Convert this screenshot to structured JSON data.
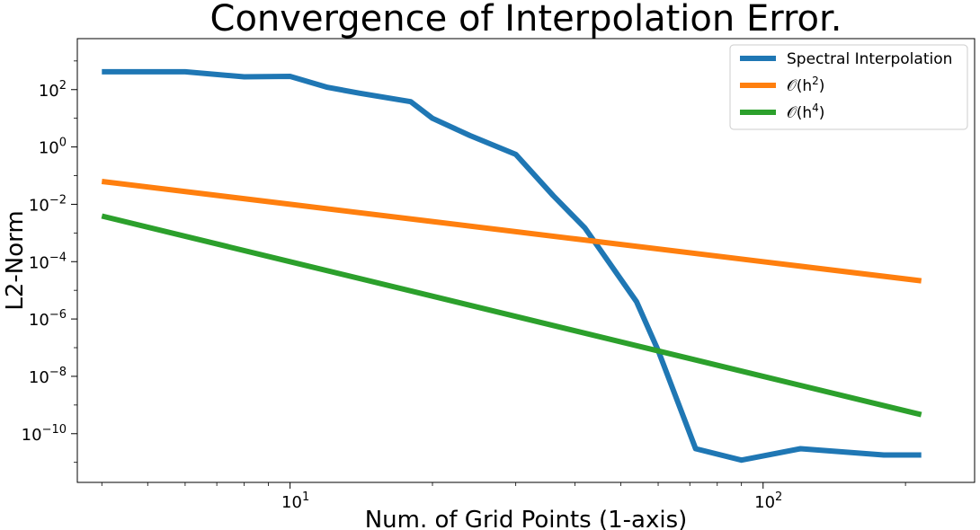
{
  "chart_data": {
    "type": "line",
    "title": "Convergence of Interpolation Error.",
    "xlabel": "Num. of Grid Points (1-axis)",
    "ylabel": "L2-Norm",
    "xscale": "log",
    "yscale": "log",
    "xlim": [
      3.55,
      280
    ],
    "ylim": [
      2e-12,
      6000.0
    ],
    "x_ticks": [
      {
        "value": 10,
        "mantissa": "10",
        "exp": "1"
      },
      {
        "value": 100,
        "mantissa": "10",
        "exp": "2"
      }
    ],
    "y_ticks": [
      {
        "value": 100.0,
        "mantissa": "10",
        "exp": "2"
      },
      {
        "value": 1.0,
        "mantissa": "10",
        "exp": "0"
      },
      {
        "value": 0.01,
        "mantissa": "10",
        "exp": "−2"
      },
      {
        "value": 0.0001,
        "mantissa": "10",
        "exp": "−4"
      },
      {
        "value": 1e-06,
        "mantissa": "10",
        "exp": "−6"
      },
      {
        "value": 1e-08,
        "mantissa": "10",
        "exp": "−8"
      },
      {
        "value": 1e-10,
        "mantissa": "10",
        "exp": "−10"
      }
    ],
    "grid": false,
    "legend_position": "top-right",
    "series": [
      {
        "name": "Spectral Interpolation",
        "color": "#1f77b4",
        "points": [
          [
            4,
            420
          ],
          [
            6,
            420
          ],
          [
            8,
            280
          ],
          [
            10,
            290
          ],
          [
            12,
            120
          ],
          [
            14,
            75
          ],
          [
            18,
            38
          ],
          [
            20,
            10
          ],
          [
            24,
            2.5
          ],
          [
            30,
            0.55
          ],
          [
            36,
            0.02
          ],
          [
            42,
            0.0015
          ],
          [
            54,
            4e-06
          ],
          [
            60,
            8e-08
          ],
          [
            72,
            3e-11
          ],
          [
            90,
            1.2e-11
          ],
          [
            120,
            3e-11
          ],
          [
            180,
            1.8e-11
          ],
          [
            216,
            1.8e-11
          ]
        ]
      },
      {
        "name": "𝒪(h²)",
        "name_main": "𝒪(h",
        "name_sup": "2",
        "name_end": ")",
        "color": "#ff7f0e",
        "points": [
          [
            4,
            0.0625
          ],
          [
            10,
            0.01
          ],
          [
            20,
            0.0025
          ],
          [
            40,
            0.000625
          ],
          [
            100,
            0.0001
          ],
          [
            216,
            2.14e-05
          ]
        ]
      },
      {
        "name": "𝒪(h⁴)",
        "name_main": "𝒪(h",
        "name_sup": "4",
        "name_end": ")",
        "color": "#2ca02c",
        "points": [
          [
            4,
            0.0039
          ],
          [
            10,
            0.0001
          ],
          [
            20,
            6.25e-06
          ],
          [
            40,
            3.9e-07
          ],
          [
            100,
            1e-08
          ],
          [
            216,
            4.6e-10
          ]
        ]
      }
    ]
  }
}
